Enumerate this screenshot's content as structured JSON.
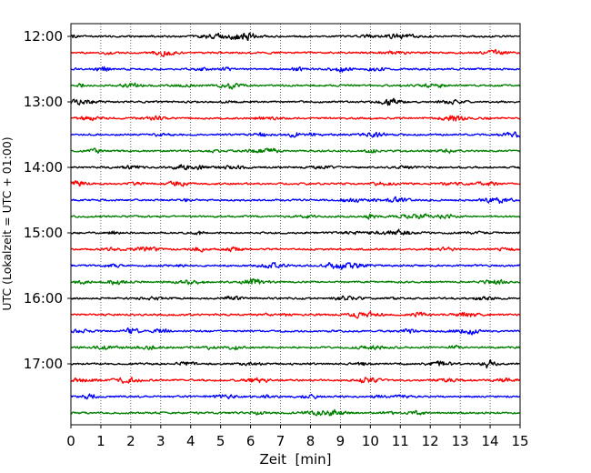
{
  "chart_data": {
    "type": "line",
    "title": "",
    "xlabel": "Zeit  [min]",
    "ylabel": "UTC (Lokalzeit = UTC + 01:00)",
    "xlim": [
      0,
      15
    ],
    "x_ticks": [
      "0",
      "1",
      "2",
      "3",
      "4",
      "5",
      "6",
      "7",
      "8",
      "9",
      "10",
      "11",
      "12",
      "13",
      "14",
      "15"
    ],
    "y_tick_labels": [
      "12:00",
      "13:00",
      "14:00",
      "15:00",
      "16:00",
      "17:00"
    ],
    "grid": "vertical dotted lines at each minute",
    "trace_color_cycle": [
      "#000000",
      "#ff0000",
      "#0000ff",
      "#008000"
    ],
    "trace_start_times": [
      "12:00",
      "12:15",
      "12:30",
      "12:45",
      "13:00",
      "13:15",
      "13:30",
      "13:45",
      "14:00",
      "14:15",
      "14:30",
      "14:45",
      "15:00",
      "15:15",
      "15:30",
      "15:45",
      "16:00",
      "16:15",
      "16:30",
      "16:45",
      "17:00",
      "17:15",
      "17:30",
      "17:45"
    ],
    "minutes_per_trace": 15
  }
}
